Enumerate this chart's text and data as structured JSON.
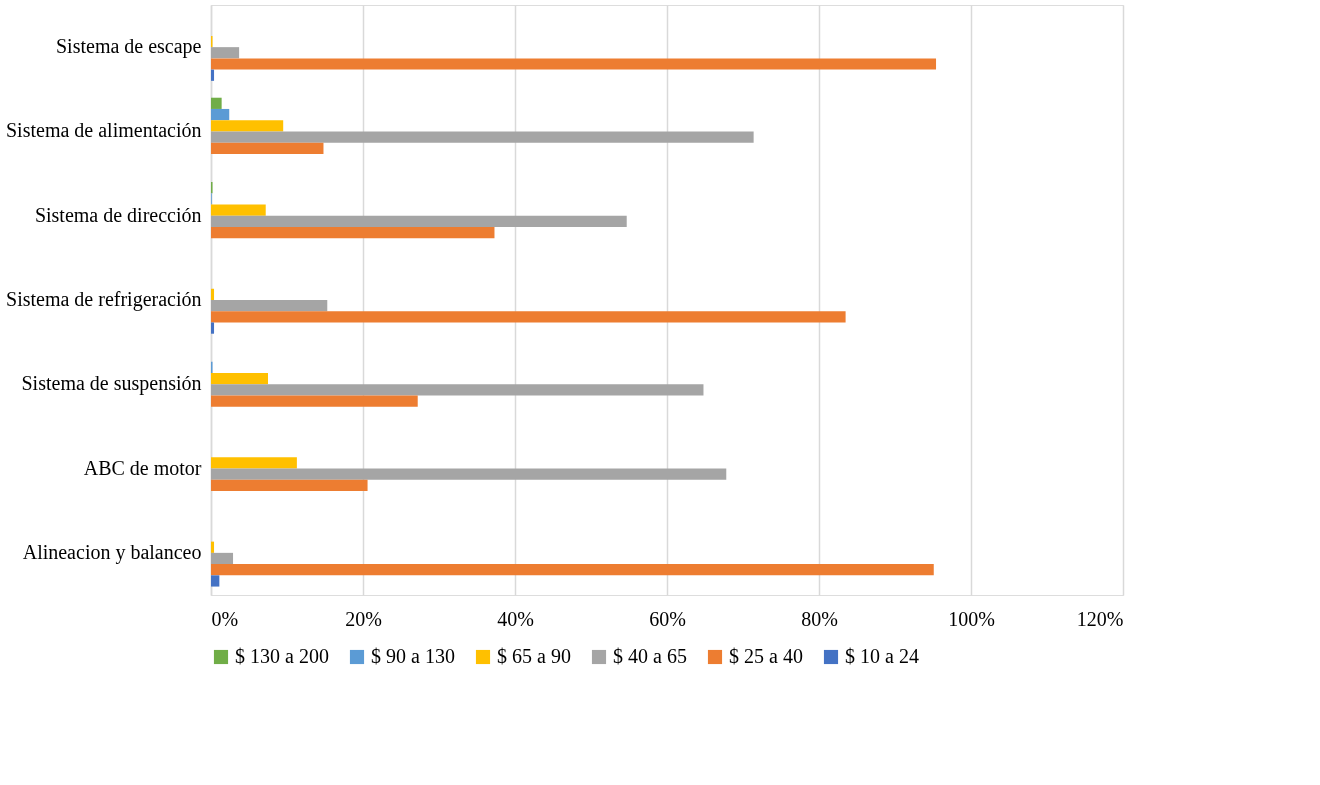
{
  "chart_data": {
    "type": "bar",
    "orientation": "horizontal",
    "categories": [
      "Sistema de escape",
      "Sistema de alimentación",
      "Sistema de dirección",
      "Sistema de refrigeración",
      "Sistema de suspensión",
      "ABC de motor",
      "Alineacion y balanceo"
    ],
    "series": [
      {
        "name": "$ 130 a 200",
        "color": "#70ad47",
        "values": [
          0,
          1.4,
          0.2,
          0,
          0,
          0,
          0
        ]
      },
      {
        "name": "$ 90 a 130",
        "color": "#5b9bd5",
        "values": [
          0,
          2.4,
          0.1,
          0,
          0.2,
          0,
          0
        ]
      },
      {
        "name": "$ 65 a 90",
        "color": "#ffc000",
        "values": [
          0.2,
          9.5,
          7.2,
          0.4,
          7.5,
          11.3,
          0.4
        ]
      },
      {
        "name": "$ 40 a 65",
        "color": "#a5a5a5",
        "values": [
          3.7,
          71.4,
          54.7,
          15.3,
          64.8,
          67.8,
          2.9
        ]
      },
      {
        "name": "$ 25 a 40",
        "color": "#ed7d31",
        "values": [
          95.4,
          14.8,
          37.3,
          83.5,
          27.2,
          20.6,
          95.1
        ]
      },
      {
        "name": "$ 10 a 24",
        "color": "#4472c4",
        "values": [
          0.4,
          0,
          0,
          0.4,
          0,
          0,
          1.1
        ]
      }
    ],
    "xlim": [
      0,
      120
    ],
    "xticks": [
      {
        "value": 0,
        "label": "0%"
      },
      {
        "value": 20,
        "label": "20%"
      },
      {
        "value": 40,
        "label": "40%"
      },
      {
        "value": 60,
        "label": "60%"
      },
      {
        "value": 80,
        "label": "80%"
      },
      {
        "value": 100,
        "label": "100%"
      },
      {
        "value": 120,
        "label": "120%"
      }
    ],
    "grid": "x",
    "legend": "bottom"
  }
}
